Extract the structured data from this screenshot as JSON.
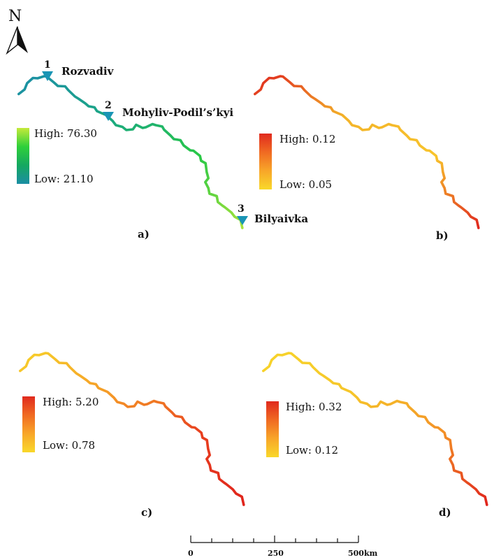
{
  "north_arrow": {
    "label": "N"
  },
  "panels": [
    {
      "id": "a",
      "caption": "a)",
      "legend": {
        "high": "High: 76.30",
        "low": "Low: 21.10",
        "ramp": [
          "#c5ea3a",
          "#2fd03a",
          "#14a860",
          "#1b8ea4"
        ]
      },
      "river_gradient": [
        "#1c8fa6",
        "#1ba783",
        "#28c846",
        "#a6e33a"
      ]
    },
    {
      "id": "b",
      "caption": "b)",
      "legend": {
        "high": "High: 0.12",
        "low": "Low: 0.05",
        "ramp": [
          "#e02a1e",
          "#f06a22",
          "#f8a629",
          "#f9d82a"
        ]
      },
      "river_gradient": [
        "#e0281e",
        "#f3b329",
        "#f8c42c",
        "#e0281e"
      ]
    },
    {
      "id": "c",
      "caption": "c)",
      "legend": {
        "high": "High: 5.20",
        "low": "Low: 0.78",
        "ramp": [
          "#e02a1e",
          "#f06a22",
          "#f8a629",
          "#f9d82a"
        ]
      },
      "river_gradient": [
        "#f7d02a",
        "#f59a27",
        "#e8401f",
        "#e0241c"
      ]
    },
    {
      "id": "d",
      "caption": "d)",
      "legend": {
        "high": "High: 0.32",
        "low": "Low: 0.12",
        "ramp": [
          "#e02a1e",
          "#f06a22",
          "#f8a629",
          "#f9d82a"
        ]
      },
      "river_gradient": [
        "#f7d42a",
        "#f6c52a",
        "#f39027",
        "#e0241c"
      ]
    }
  ],
  "stations": [
    {
      "number": "1",
      "name": "Rozvadiv"
    },
    {
      "number": "2",
      "name": "Mohyliv-Podil’s’kyi"
    },
    {
      "number": "3",
      "name": "Bilyaivka"
    }
  ],
  "scale_bar": {
    "labels": [
      "0",
      "250",
      "500km"
    ]
  },
  "colors": {
    "station_marker": "#1a95b5",
    "text": "#111111"
  }
}
